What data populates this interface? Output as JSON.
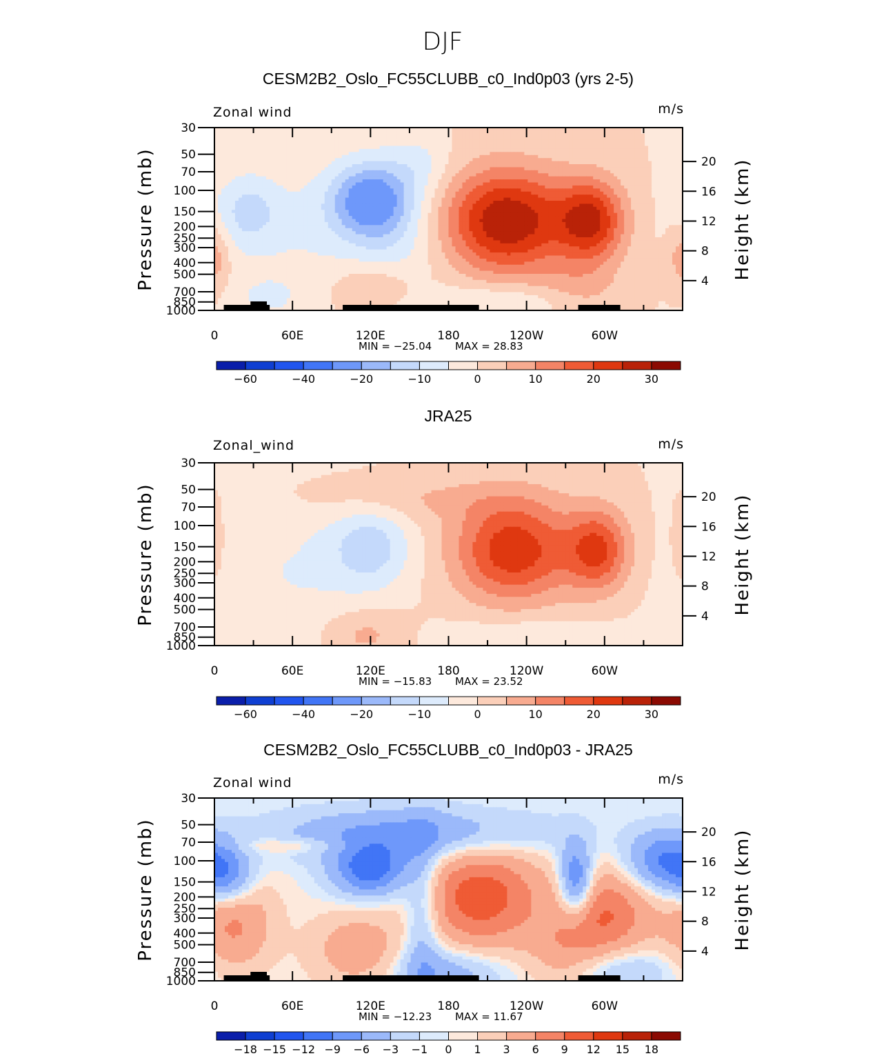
{
  "figure_title": "DJF",
  "chart_data": [
    {
      "type": "heatmap",
      "subtype": "filled-contour longitude-pressure cross-section",
      "title": "CESM2B2_Oslo_FC55CLUBB_c0_Ind0p03 (yrs 2-5)",
      "variable_label": "Zonal wind",
      "units": "m/s",
      "ylabel": "Pressure (mb)",
      "ylabel_right": "Height (km)",
      "xticks": [
        "0",
        "60E",
        "120E",
        "180",
        "120W",
        "60W"
      ],
      "yticks": [
        "30",
        "50",
        "70",
        "100",
        "150",
        "200",
        "250",
        "300",
        "400",
        "500",
        "700",
        "850",
        "1000"
      ],
      "yticks_right": [
        "20",
        "16",
        "12",
        "8",
        "4"
      ],
      "min_label": "MIN = −25.04",
      "max_label": "MAX =   28.83",
      "min": -25.04,
      "max": 28.83,
      "colorbar_levels": [
        "−60",
        "−40",
        "−20",
        "−10",
        "0",
        "10",
        "20",
        "30"
      ],
      "colors": [
        "#00007f",
        "#0a1eaa",
        "#0f3fd2",
        "#2155ee",
        "#4175f6",
        "#6e98fa",
        "#9bb9fa",
        "#c4d9fb",
        "#ddebfc",
        "#fde9dc",
        "#fbcfb9",
        "#f8ab90",
        "#f48466",
        "#ef5b35",
        "#df3810",
        "#b92208",
        "#8b0a02"
      ],
      "blobs": [
        {
          "lon": 225,
          "p": 180,
          "amp": 30,
          "sx": 34,
          "sy": 0.7
        },
        {
          "lon": 290,
          "p": 180,
          "amp": 24,
          "sx": 18,
          "sy": 0.55
        },
        {
          "lon": 120,
          "p": 120,
          "amp": -22,
          "sx": 22,
          "sy": 0.5
        },
        {
          "lon": 25,
          "p": 150,
          "amp": -10,
          "sx": 18,
          "sy": 0.5
        },
        {
          "lon": 75,
          "p": 220,
          "amp": -5,
          "sx": 45,
          "sy": 0.9
        },
        {
          "lon": 140,
          "p": 300,
          "amp": -6,
          "sx": 25,
          "sy": 1.2
        },
        {
          "lon": 125,
          "p": 650,
          "amp": 9,
          "sx": 24,
          "sy": 0.35
        },
        {
          "lon": 0,
          "p": 350,
          "amp": 9,
          "sx": 8,
          "sy": 0.45
        },
        {
          "lon": 225,
          "p": 850,
          "amp": -7,
          "sx": 40,
          "sy": 0.25
        },
        {
          "lon": 40,
          "p": 800,
          "amp": -5,
          "sx": 20,
          "sy": 0.3
        },
        {
          "lon": 160,
          "p": 60,
          "amp": -5,
          "sx": 15,
          "sy": 0.4
        },
        {
          "lon": 280,
          "p": 700,
          "amp": 6,
          "sx": 25,
          "sy": 0.4
        }
      ]
    },
    {
      "type": "heatmap",
      "subtype": "filled-contour longitude-pressure cross-section",
      "title": "JRA25",
      "variable_label": "Zonal_wind",
      "units": "m/s",
      "ylabel": "Pressure (mb)",
      "ylabel_right": "Height (km)",
      "xticks": [
        "0",
        "60E",
        "120E",
        "180",
        "120W",
        "60W"
      ],
      "yticks": [
        "30",
        "50",
        "70",
        "100",
        "150",
        "200",
        "250",
        "300",
        "400",
        "500",
        "700",
        "850",
        "1000"
      ],
      "yticks_right": [
        "20",
        "16",
        "12",
        "8",
        "4"
      ],
      "min_label": "MIN = −15.83",
      "max_label": "MAX =   23.52",
      "min": -15.83,
      "max": 23.52,
      "colorbar_levels": [
        "−60",
        "−40",
        "−20",
        "−10",
        "0",
        "10",
        "20",
        "30"
      ],
      "colors": [
        "#00007f",
        "#0a1eaa",
        "#0f3fd2",
        "#2155ee",
        "#4175f6",
        "#6e98fa",
        "#9bb9fa",
        "#c4d9fb",
        "#ddebfc",
        "#fde9dc",
        "#fbcfb9",
        "#f8ab90",
        "#f48466",
        "#ef5b35",
        "#df3810",
        "#b92208",
        "#8b0a02"
      ],
      "blobs": [
        {
          "lon": 230,
          "p": 160,
          "amp": 24,
          "sx": 32,
          "sy": 0.7
        },
        {
          "lon": 295,
          "p": 160,
          "amp": 20,
          "sx": 17,
          "sy": 0.55
        },
        {
          "lon": 120,
          "p": 150,
          "amp": -12,
          "sx": 22,
          "sy": 0.55
        },
        {
          "lon": 60,
          "p": 250,
          "amp": -5,
          "sx": 45,
          "sy": 1.0
        },
        {
          "lon": 150,
          "p": 60,
          "amp": 5,
          "sx": 60,
          "sy": 0.3
        },
        {
          "lon": 115,
          "p": 800,
          "amp": 7,
          "sx": 22,
          "sy": 0.35
        },
        {
          "lon": 240,
          "p": 900,
          "amp": -6,
          "sx": 45,
          "sy": 0.3
        },
        {
          "lon": 0,
          "p": 150,
          "amp": 4,
          "sx": 6,
          "sy": 0.5
        }
      ]
    },
    {
      "type": "heatmap",
      "subtype": "filled-contour longitude-pressure cross-section",
      "title": "CESM2B2_Oslo_FC55CLUBB_c0_Ind0p03 - JRA25",
      "variable_label": "Zonal wind",
      "units": "m/s",
      "ylabel": "Pressure (mb)",
      "ylabel_right": "Height (km)",
      "xticks": [
        "0",
        "60E",
        "120E",
        "180",
        "120W",
        "60W"
      ],
      "yticks": [
        "30",
        "50",
        "70",
        "100",
        "150",
        "200",
        "250",
        "300",
        "400",
        "500",
        "700",
        "850",
        "1000"
      ],
      "yticks_right": [
        "20",
        "16",
        "12",
        "8",
        "4"
      ],
      "min_label": "MIN = −12.23",
      "max_label": "MAX =   11.67",
      "min": -12.23,
      "max": 11.67,
      "colorbar_levels": [
        "−18",
        "−15",
        "−12",
        "−9",
        "−6",
        "−3",
        "−1",
        "0",
        "1",
        "3",
        "6",
        "9",
        "12",
        "15",
        "18"
      ],
      "colors": [
        "#00007f",
        "#0a1eaa",
        "#0f3fd2",
        "#2155ee",
        "#4175f6",
        "#6e98fa",
        "#9bb9fa",
        "#c4d9fb",
        "#ddebfc",
        "#fde9dc",
        "#fbcfb9",
        "#f8ab90",
        "#f48466",
        "#ef5b35",
        "#df3810",
        "#b92208",
        "#8b0a02"
      ],
      "blobs": [
        {
          "lon": 205,
          "p": 200,
          "amp": 11,
          "sx": 32,
          "sy": 0.7
        },
        {
          "lon": 300,
          "p": 280,
          "amp": 9,
          "sx": 25,
          "sy": 0.6
        },
        {
          "lon": 15,
          "p": 300,
          "amp": 7,
          "sx": 20,
          "sy": 0.7
        },
        {
          "lon": 110,
          "p": 550,
          "amp": 5,
          "sx": 25,
          "sy": 0.5
        },
        {
          "lon": 120,
          "p": 120,
          "amp": -11,
          "sx": 20,
          "sy": 0.35
        },
        {
          "lon": 10,
          "p": 140,
          "amp": -9,
          "sx": 15,
          "sy": 0.4
        },
        {
          "lon": 278,
          "p": 150,
          "amp": -11,
          "sx": 9,
          "sy": 0.5
        },
        {
          "lon": 345,
          "p": 100,
          "amp": -9,
          "sx": 20,
          "sy": 0.4
        },
        {
          "lon": 150,
          "p": 60,
          "amp": -7,
          "sx": 70,
          "sy": 0.35
        },
        {
          "lon": 160,
          "p": 300,
          "amp": -5,
          "sx": 10,
          "sy": 1.2
        },
        {
          "lon": 180,
          "p": 850,
          "amp": -5,
          "sx": 30,
          "sy": 0.35
        },
        {
          "lon": 310,
          "p": 800,
          "amp": -4,
          "sx": 30,
          "sy": 0.3
        },
        {
          "lon": 270,
          "p": 600,
          "amp": 4,
          "sx": 20,
          "sy": 0.5
        },
        {
          "lon": 60,
          "p": 75,
          "amp": 3,
          "sx": 30,
          "sy": 0.1
        }
      ]
    }
  ]
}
